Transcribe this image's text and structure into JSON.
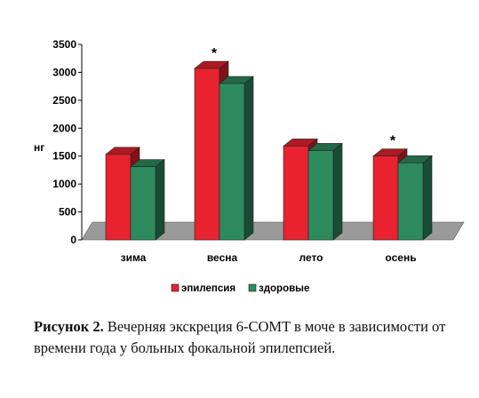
{
  "chart_data": {
    "type": "bar",
    "ylabel": "нг",
    "ylim": [
      0,
      3500
    ],
    "yticks": [
      "0",
      "500",
      "1000",
      "1500",
      "2000",
      "2500",
      "3000",
      "3500"
    ],
    "categories": [
      "зима",
      "весна",
      "лето",
      "осень"
    ],
    "series": [
      {
        "name": "эпилепсия",
        "color": "#e8222e",
        "values": [
          1530,
          3070,
          1680,
          1500
        ]
      },
      {
        "name": "здоровые",
        "color": "#2e8b5e",
        "values": [
          1310,
          2800,
          1600,
          1380
        ]
      }
    ],
    "annotations": [
      {
        "category": "весна",
        "text": "*"
      },
      {
        "category": "осень",
        "text": "*"
      }
    ],
    "legend_position": "bottom",
    "style": "3d-clustered-bar"
  },
  "caption": {
    "label": "Рисунок 2.",
    "text": " Вечерняя экскреция 6-COMT в моче в зависимости от времени года у больных фокальной эпилепсией."
  }
}
